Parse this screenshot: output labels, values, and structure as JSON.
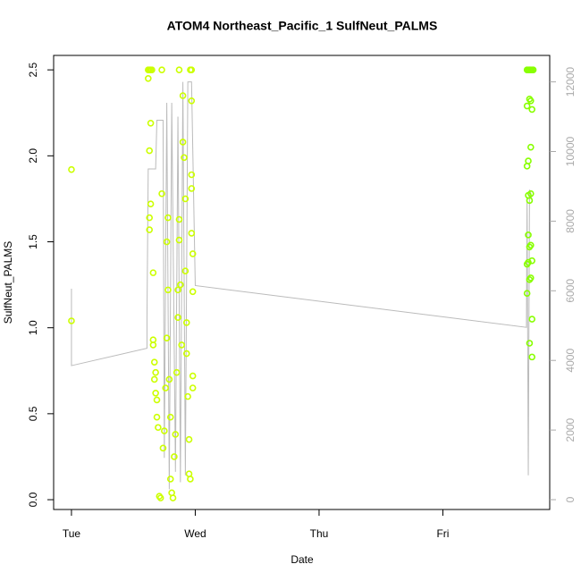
{
  "chart_data": {
    "type": "scatter",
    "title": "ATOM4 Northeast_Pacific_1 SulfNeut_PALMS",
    "x_label": "Date",
    "y_label": "SulfNeut_PALMS",
    "xlim": [
      -0.144,
      3.863
    ],
    "xticks": [
      {
        "value": 0,
        "label": "Tue"
      },
      {
        "value": 1,
        "label": "Wed"
      },
      {
        "value": 2,
        "label": "Thu"
      },
      {
        "value": 3,
        "label": "Fri"
      }
    ],
    "ylim": [
      -0.057,
      2.584
    ],
    "yticks": [
      {
        "value": 0,
        "label": "0.0"
      },
      0.5,
      {
        "value": 1,
        "label": "1.0"
      },
      1.5,
      {
        "value": 2,
        "label": "2.0"
      },
      2.5
    ],
    "y2lim": [
      -282,
      12760
    ],
    "y2ticks": [
      0,
      2000,
      4000,
      6000,
      8000,
      10000,
      12000
    ],
    "y2_color": "#aaaaaa",
    "series": [
      {
        "color": "#ccff00",
        "x": [
          0,
          0,
          0.62,
          0.63,
          0.64,
          0.65,
          0.62,
          0.64,
          0.63,
          0.64,
          0.63,
          0.63,
          0.66,
          0.66,
          0.66,
          0.67,
          0.68,
          0.67,
          0.68,
          0.69,
          0.69,
          0.7,
          0.71,
          0.72,
          0.73,
          0.73,
          0.74,
          0.75,
          0.76,
          0.77,
          0.77,
          0.78,
          0.78,
          0.79,
          0.8,
          0.8,
          0.81,
          0.82,
          0.83,
          0.84,
          0.85,
          0.86,
          0.86,
          0.87,
          0.87,
          0.87,
          0.88,
          0.89,
          0.9,
          0.9,
          0.91,
          0.92,
          0.92,
          0.93,
          0.93,
          0.94,
          0.95,
          0.95,
          0.96,
          0.96,
          0.97,
          0.97,
          0.97,
          0.97,
          0.97,
          0.98,
          0.98,
          0.98,
          0.98
        ],
        "values": [
          1.92,
          1.04,
          2.5,
          2.5,
          2.5,
          2.5,
          2.45,
          2.19,
          2.03,
          1.72,
          1.64,
          1.57,
          1.32,
          0.93,
          0.9,
          0.8,
          0.74,
          0.7,
          0.62,
          0.58,
          0.48,
          0.42,
          0.02,
          0.01,
          1.78,
          2.5,
          0.3,
          0.4,
          0.65,
          0.94,
          1.5,
          1.64,
          1.22,
          0.7,
          0.48,
          0.12,
          0.04,
          0.01,
          0.25,
          0.38,
          0.74,
          1.06,
          1.22,
          1.51,
          1.63,
          2.5,
          1.25,
          0.9,
          2.35,
          2.08,
          1.99,
          1.75,
          1.33,
          1.03,
          0.85,
          0.6,
          0.35,
          0.15,
          0.12,
          2.5,
          2.5,
          2.32,
          1.89,
          1.81,
          1.55,
          1.43,
          1.21,
          0.72,
          0.65
        ]
      },
      {
        "color": "#88ff00",
        "x": [
          3.68,
          3.69,
          3.7,
          3.71,
          3.72,
          3.73,
          3.68,
          3.7,
          3.71,
          3.72,
          3.71,
          3.69,
          3.68,
          3.69,
          3.7,
          3.71,
          3.69,
          3.7,
          3.71,
          3.72,
          3.68,
          3.69,
          3.7,
          3.71,
          3.68,
          3.72,
          3.7,
          3.72
        ],
        "values": [
          2.5,
          2.5,
          2.5,
          2.5,
          2.5,
          2.5,
          2.29,
          2.33,
          2.32,
          2.27,
          2.05,
          1.97,
          1.94,
          1.77,
          1.74,
          1.78,
          1.54,
          1.47,
          1.48,
          1.39,
          1.37,
          1.38,
          1.28,
          1.29,
          1.2,
          1.05,
          0.91,
          0.83
        ]
      },
      {
        "type": "line",
        "axis": "y2",
        "color": "#bbbbbb",
        "x": [
          0,
          0,
          0.61,
          0.61,
          0.62,
          0.68,
          0.69,
          0.74,
          0.75,
          0.77,
          0.79,
          0.81,
          0.84,
          0.86,
          0.88,
          0.9,
          0.92,
          0.94,
          0.97,
          1.0,
          3.675,
          3.68,
          3.69,
          3.7,
          3.71,
          3.72
        ],
        "values": [
          6060,
          3850,
          4350,
          5200,
          9500,
          9500,
          10900,
          10900,
          1200,
          11400,
          300,
          11400,
          800,
          11000,
          500,
          12000,
          700,
          12000,
          12000,
          6150,
          4950,
          8700,
          700,
          8900,
          8800,
          8600
        ]
      }
    ]
  }
}
